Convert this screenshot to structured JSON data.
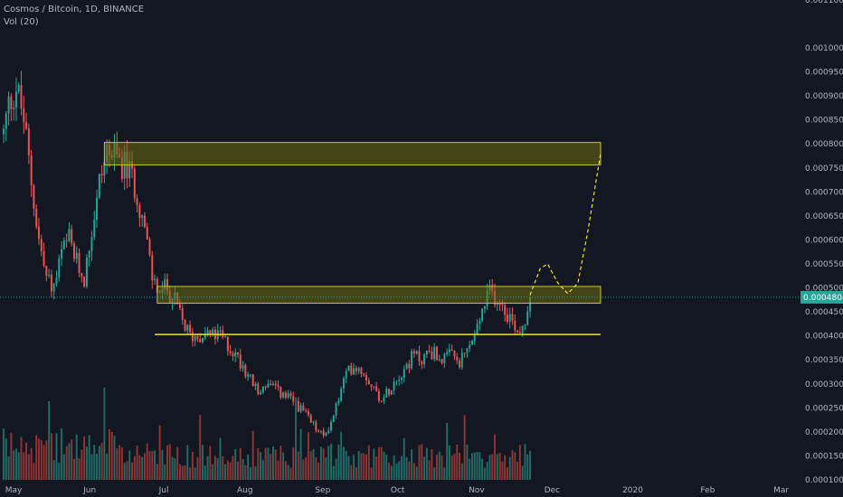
{
  "header": {
    "symbol": "Cosmos / Bitcoin, 1D, BINANCE",
    "indicator": "Vol (20)"
  },
  "colors": {
    "background": "#131722",
    "up": "#26a69a",
    "down": "#ef5350",
    "vol_up": "#1f6b66",
    "vol_down": "#8f3434",
    "zone_fill": "#6b6b12",
    "zone_border": "#c9c92e",
    "support": "#f5e11d",
    "projection": "#f5e11d",
    "axis_text": "#b2b5be",
    "price_tag": "#26a69a"
  },
  "chart_data": {
    "type": "candlestick",
    "symbol": "ATOM/BTC",
    "interval": "1D",
    "exchange": "BINANCE",
    "y_axis": {
      "side": "right",
      "range": [
        0.0001,
        0.0011
      ],
      "ticks": [
        "0.0010000",
        "0.0009500",
        "0.0009000",
        "0.0008500",
        "0.0008000",
        "0.0007500",
        "0.0007000",
        "0.0006500",
        "0.0006000",
        "0.0005500",
        "0.0005000",
        "0.0004500",
        "0.0004000",
        "0.0003500",
        "0.0003000",
        "0.0002500",
        "0.0002000",
        "0.0001500",
        "0.0001000"
      ],
      "top_partial_tick": "0.0011000"
    },
    "x_axis": {
      "ticks": [
        {
          "label": "May",
          "date": "2019-05-01"
        },
        {
          "label": "Jun",
          "date": "2019-06-01"
        },
        {
          "label": "Jul",
          "date": "2019-07-01"
        },
        {
          "label": "Aug",
          "date": "2019-08-01"
        },
        {
          "label": "Sep",
          "date": "2019-09-01"
        },
        {
          "label": "Oct",
          "date": "2019-10-01"
        },
        {
          "label": "Nov",
          "date": "2019-11-01"
        },
        {
          "label": "Dec",
          "date": "2019-12-01"
        },
        {
          "label": "2020",
          "date": "2020-01-01"
        },
        {
          "label": "Feb",
          "date": "2020-02-01"
        },
        {
          "label": "Mar",
          "date": "2020-03-01"
        }
      ],
      "range": [
        "2019-04-30",
        "2020-03-11"
      ]
    },
    "last_price": "0.0004804",
    "close_path": [
      {
        "d": "2019-04-30",
        "v": 0.00082
      },
      {
        "d": "2019-05-02",
        "v": 0.00088
      },
      {
        "d": "2019-05-05",
        "v": 0.00092
      },
      {
        "d": "2019-05-08",
        "v": 0.00085
      },
      {
        "d": "2019-05-11",
        "v": 0.00072
      },
      {
        "d": "2019-05-14",
        "v": 0.0006
      },
      {
        "d": "2019-05-17",
        "v": 0.00052
      },
      {
        "d": "2019-05-20",
        "v": 0.0005
      },
      {
        "d": "2019-05-23",
        "v": 0.00057
      },
      {
        "d": "2019-05-26",
        "v": 0.0006
      },
      {
        "d": "2019-05-29",
        "v": 0.00055
      },
      {
        "d": "2019-06-01",
        "v": 0.00052
      },
      {
        "d": "2019-06-04",
        "v": 0.00062
      },
      {
        "d": "2019-06-07",
        "v": 0.00072
      },
      {
        "d": "2019-06-10",
        "v": 0.00079
      },
      {
        "d": "2019-06-13",
        "v": 0.00077
      },
      {
        "d": "2019-06-16",
        "v": 0.00076
      },
      {
        "d": "2019-06-19",
        "v": 0.00074
      },
      {
        "d": "2019-06-22",
        "v": 0.0007
      },
      {
        "d": "2019-06-25",
        "v": 0.00062
      },
      {
        "d": "2019-06-28",
        "v": 0.00052
      },
      {
        "d": "2019-07-01",
        "v": 0.00049
      },
      {
        "d": "2019-07-04",
        "v": 0.0005
      },
      {
        "d": "2019-07-07",
        "v": 0.00047
      },
      {
        "d": "2019-07-10",
        "v": 0.00043
      },
      {
        "d": "2019-07-13",
        "v": 0.0004
      },
      {
        "d": "2019-07-16",
        "v": 0.0004
      },
      {
        "d": "2019-07-19",
        "v": 0.00041
      },
      {
        "d": "2019-07-22",
        "v": 0.0004
      },
      {
        "d": "2019-07-25",
        "v": 0.0004
      },
      {
        "d": "2019-07-28",
        "v": 0.00038
      },
      {
        "d": "2019-07-31",
        "v": 0.00036
      },
      {
        "d": "2019-08-03",
        "v": 0.00034
      },
      {
        "d": "2019-08-06",
        "v": 0.00031
      },
      {
        "d": "2019-08-09",
        "v": 0.00028
      },
      {
        "d": "2019-08-12",
        "v": 0.0003
      },
      {
        "d": "2019-08-15",
        "v": 0.00029
      },
      {
        "d": "2019-08-18",
        "v": 0.00028
      },
      {
        "d": "2019-08-21",
        "v": 0.00027
      },
      {
        "d": "2019-08-24",
        "v": 0.00026
      },
      {
        "d": "2019-08-27",
        "v": 0.00024
      },
      {
        "d": "2019-08-30",
        "v": 0.00022
      },
      {
        "d": "2019-09-02",
        "v": 0.0002
      },
      {
        "d": "2019-09-04",
        "v": 0.00019
      },
      {
        "d": "2019-09-07",
        "v": 0.00022
      },
      {
        "d": "2019-09-10",
        "v": 0.00027
      },
      {
        "d": "2019-09-13",
        "v": 0.00032
      },
      {
        "d": "2019-09-16",
        "v": 0.00034
      },
      {
        "d": "2019-09-19",
        "v": 0.00033
      },
      {
        "d": "2019-09-22",
        "v": 0.00031
      },
      {
        "d": "2019-09-25",
        "v": 0.00028
      },
      {
        "d": "2019-09-28",
        "v": 0.00027
      },
      {
        "d": "2019-10-01",
        "v": 0.0003
      },
      {
        "d": "2019-10-04",
        "v": 0.00032
      },
      {
        "d": "2019-10-07",
        "v": 0.00034
      },
      {
        "d": "2019-10-10",
        "v": 0.00036
      },
      {
        "d": "2019-10-13",
        "v": 0.00035
      },
      {
        "d": "2019-10-16",
        "v": 0.00037
      },
      {
        "d": "2019-10-19",
        "v": 0.00036
      },
      {
        "d": "2019-10-22",
        "v": 0.00035
      },
      {
        "d": "2019-10-25",
        "v": 0.00036
      },
      {
        "d": "2019-10-28",
        "v": 0.00034
      },
      {
        "d": "2019-10-31",
        "v": 0.00037
      },
      {
        "d": "2019-11-03",
        "v": 0.0004
      },
      {
        "d": "2019-11-06",
        "v": 0.00045
      },
      {
        "d": "2019-11-09",
        "v": 0.00049
      },
      {
        "d": "2019-11-12",
        "v": 0.00048
      },
      {
        "d": "2019-11-15",
        "v": 0.00046
      },
      {
        "d": "2019-11-18",
        "v": 0.00043
      },
      {
        "d": "2019-11-21",
        "v": 0.00041
      },
      {
        "d": "2019-11-23",
        "v": 0.00044
      },
      {
        "d": "2019-11-25",
        "v": 0.00048
      }
    ],
    "zones": [
      {
        "from": "2019-06-09",
        "to": "2019-12-23",
        "low": 0.000756,
        "high": 0.000803
      },
      {
        "from": "2019-06-30",
        "to": "2019-12-23",
        "low": 0.000468,
        "high": 0.000503
      }
    ],
    "support_line": {
      "from": "2019-06-29",
      "to": "2019-12-23",
      "price": 0.000403
    },
    "projection": [
      {
        "d": "2019-11-25",
        "v": 0.000485
      },
      {
        "d": "2019-11-29",
        "v": 0.00054
      },
      {
        "d": "2019-12-02",
        "v": 0.00055
      },
      {
        "d": "2019-12-06",
        "v": 0.00051
      },
      {
        "d": "2019-12-10",
        "v": 0.000488
      },
      {
        "d": "2019-12-14",
        "v": 0.00051
      },
      {
        "d": "2019-12-18",
        "v": 0.00062
      },
      {
        "d": "2019-12-23",
        "v": 0.00078
      }
    ],
    "volume_scale_max": 1.0
  }
}
